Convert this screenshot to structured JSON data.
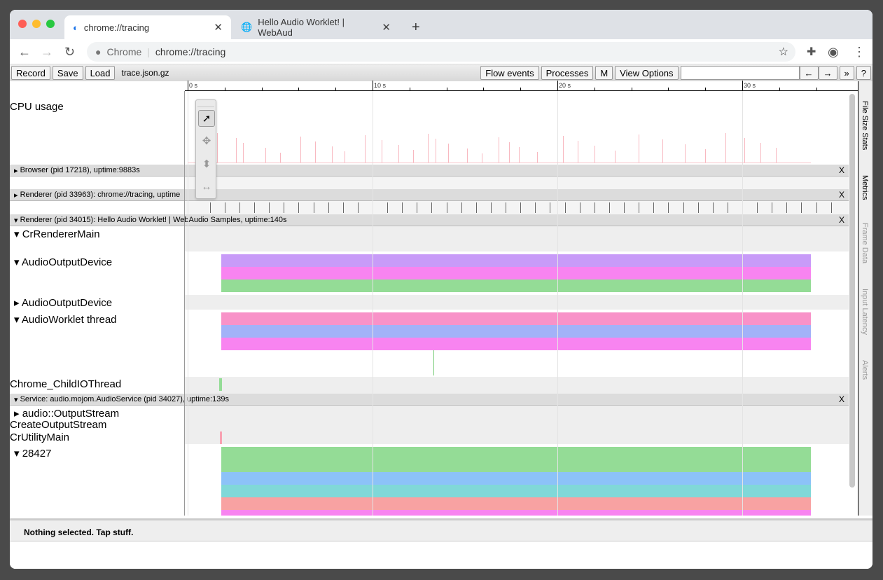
{
  "browser": {
    "tabs": [
      {
        "title": "chrome://tracing",
        "icon": "tracing-icon"
      },
      {
        "title": "Hello Audio Worklet! | WebAud",
        "icon": "globe-icon"
      }
    ],
    "omnibox_site": "Chrome",
    "omnibox_url": "chrome://tracing"
  },
  "toolbar": {
    "record": "Record",
    "save": "Save",
    "load": "Load",
    "filename": "trace.json.gz",
    "flow_events": "Flow events",
    "processes": "Processes",
    "m": "M",
    "view_options": "View Options",
    "search_placeholder": "",
    "prev": "←",
    "next": "→",
    "more": "»",
    "help": "?"
  },
  "ruler": {
    "labels": [
      "0 s",
      "10 s",
      "20 s",
      "30 s"
    ],
    "seconds": [
      0,
      10,
      20,
      30
    ]
  },
  "tracks": {
    "cpu": "CPU usage",
    "browser": "Browser (pid 17218), uptime:9883s",
    "renderer1": "Renderer (pid 33963): chrome://tracing, uptime",
    "renderer2": "Renderer (pid 34015): Hello Audio Worklet! | WebAudio Samples, uptime:140s",
    "crrenderermain": "CrRendererMain",
    "aod1": "AudioOutputDevice",
    "aod2": "AudioOutputDevice",
    "worklet": "AudioWorklet thread",
    "childio": "Chrome_ChildIOThread",
    "service": "Service: audio.mojom.AudioService (pid 34027), uptime:139s",
    "outputstream": "audio::OutputStream",
    "createoutput": "CreateOutputStream",
    "crutility": "CrUtilityMain",
    "t28427": "28427",
    "close": "X"
  },
  "slices": {
    "start_s": 1.8,
    "end_s": 33.7,
    "aod": [
      "#c89bf8",
      "#f884f0",
      "#94dc96"
    ],
    "worklet": [
      "#f892c8",
      "#a2b2f8",
      "#f884f0"
    ],
    "t28427": [
      "#94dc96",
      "#94dc96",
      "#8cc2f8",
      "#80d8d8",
      "#f8a2a2",
      "#f884f0"
    ]
  },
  "cpu_spikes_s": [
    1.6,
    2.6,
    3.0,
    4.2,
    5.0,
    6.1,
    6.9,
    7.8,
    8.5,
    9.6,
    10.5,
    11.4,
    12.2,
    13.0,
    13.4,
    14.1,
    15.1,
    15.9,
    16.8,
    17.4,
    17.9,
    18.9,
    20.3,
    21.1,
    22.0,
    23.1,
    24.4,
    25.7,
    26.9,
    28.0,
    29.1,
    30.1,
    31.0,
    31.8
  ],
  "side_tabs": [
    "File Size Stats",
    "Metrics",
    "Frame Data",
    "Input Latency",
    "Alerts"
  ],
  "status": "Nothing selected. Tap stuff."
}
